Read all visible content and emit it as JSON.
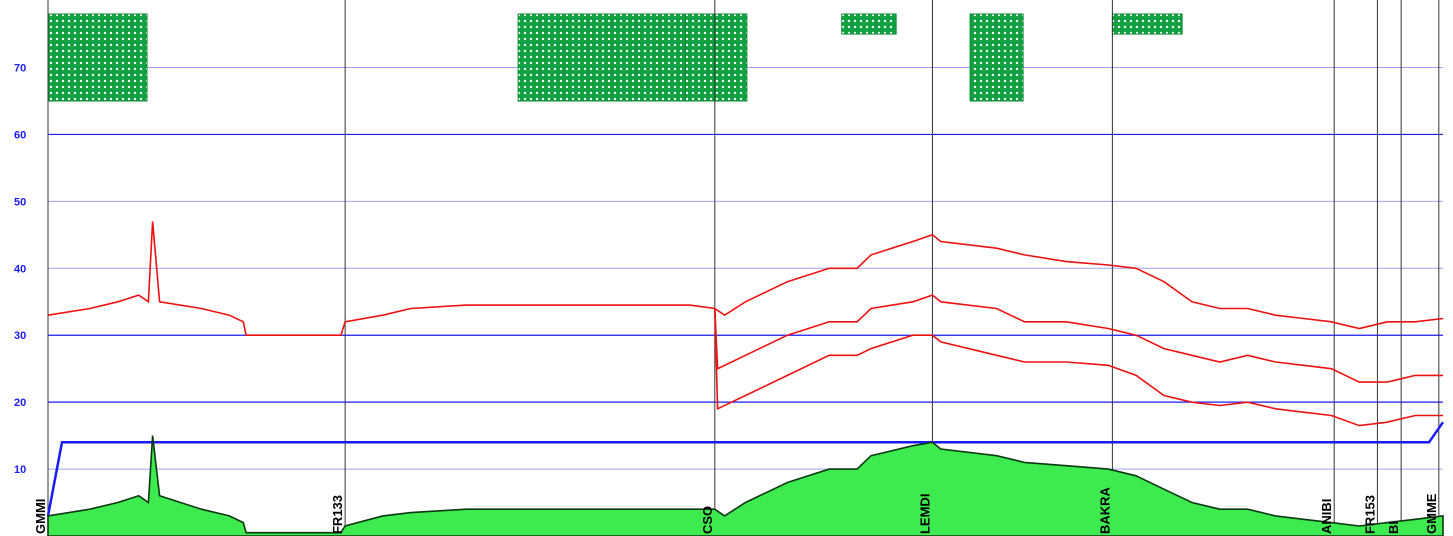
{
  "chart_data": {
    "type": "line",
    "ylim": [
      0,
      78
    ],
    "y_ticks": [
      "10",
      "20",
      "30",
      "40",
      "50",
      "60",
      "70"
    ],
    "major_gridlines": [
      20,
      30,
      60
    ],
    "minor_gridlines": [
      10,
      40,
      50,
      70
    ],
    "x_range": [
      0,
      100
    ],
    "waypoints": [
      {
        "label": "GMMI",
        "x": 0
      },
      {
        "label": "FR133",
        "x": 21.3
      },
      {
        "label": "CSO",
        "x": 47.8
      },
      {
        "label": "LEMDI",
        "x": 63.4
      },
      {
        "label": "BAKRA",
        "x": 76.3
      },
      {
        "label": "ANIBI",
        "x": 92.2
      },
      {
        "label": "FR153",
        "x": 95.3
      },
      {
        "label": "BI",
        "x": 97
      },
      {
        "label": "GMME",
        "x": 99.7
      }
    ],
    "blocks": [
      {
        "x": [
          0,
          7.1
        ],
        "y": [
          65,
          78
        ]
      },
      {
        "x": [
          33.7,
          45.7
        ],
        "y": [
          65,
          78
        ]
      },
      {
        "x": [
          45.7,
          50.1
        ],
        "y": [
          65,
          78
        ]
      },
      {
        "x": [
          56.9,
          60.8
        ],
        "y": [
          75,
          78
        ]
      },
      {
        "x": [
          66.1,
          69.9
        ],
        "y": [
          65,
          78
        ]
      },
      {
        "x": [
          76.3,
          81.3
        ],
        "y": [
          75,
          78
        ]
      }
    ],
    "series": [
      {
        "type": "line",
        "color": "#ee1111",
        "points": [
          [
            0,
            33
          ],
          [
            3,
            34
          ],
          [
            5,
            35
          ],
          [
            6.5,
            36
          ],
          [
            7.2,
            35
          ],
          [
            7.5,
            47
          ],
          [
            8,
            35
          ],
          [
            11,
            34
          ],
          [
            13,
            33
          ],
          [
            14,
            32
          ],
          [
            14.2,
            30
          ],
          [
            21,
            30
          ],
          [
            21.3,
            32
          ],
          [
            24,
            33
          ],
          [
            26,
            34
          ],
          [
            30,
            34.5
          ],
          [
            36,
            34.5
          ],
          [
            42,
            34.5
          ],
          [
            46,
            34.5
          ],
          [
            47.8,
            34
          ],
          [
            48.5,
            33
          ],
          [
            50,
            35
          ],
          [
            53,
            38
          ],
          [
            56,
            40
          ],
          [
            58,
            40
          ],
          [
            59,
            42
          ],
          [
            62,
            44
          ],
          [
            63.4,
            45
          ],
          [
            64,
            44
          ],
          [
            68,
            43
          ],
          [
            70,
            42
          ],
          [
            73,
            41
          ],
          [
            76,
            40.5
          ],
          [
            78,
            40
          ],
          [
            80,
            38
          ],
          [
            82,
            35
          ],
          [
            84,
            34
          ],
          [
            86,
            34
          ],
          [
            88,
            33
          ],
          [
            90,
            32.5
          ],
          [
            92,
            32
          ],
          [
            94,
            31
          ],
          [
            96,
            32
          ],
          [
            98,
            32
          ],
          [
            100,
            32.5
          ]
        ]
      },
      {
        "type": "line",
        "color": "#ee1111",
        "points": [
          [
            47.8,
            34
          ],
          [
            48,
            25
          ],
          [
            50,
            27
          ],
          [
            53,
            30
          ],
          [
            56,
            32
          ],
          [
            58,
            32
          ],
          [
            59,
            34
          ],
          [
            62,
            35
          ],
          [
            63.4,
            36
          ],
          [
            64,
            35
          ],
          [
            68,
            34
          ],
          [
            70,
            32
          ],
          [
            73,
            32
          ],
          [
            76,
            31
          ],
          [
            78,
            30
          ],
          [
            80,
            28
          ],
          [
            82,
            27
          ],
          [
            84,
            26
          ],
          [
            86,
            27
          ],
          [
            88,
            26
          ],
          [
            90,
            25.5
          ],
          [
            92,
            25
          ],
          [
            94,
            23
          ],
          [
            96,
            23
          ],
          [
            98,
            24
          ],
          [
            100,
            24
          ]
        ]
      },
      {
        "type": "line",
        "color": "#ee1111",
        "points": [
          [
            47.8,
            34
          ],
          [
            48,
            19
          ],
          [
            50,
            21
          ],
          [
            53,
            24
          ],
          [
            56,
            27
          ],
          [
            58,
            27
          ],
          [
            59,
            28
          ],
          [
            62,
            30
          ],
          [
            63.4,
            30
          ],
          [
            64,
            29
          ],
          [
            68,
            27
          ],
          [
            70,
            26
          ],
          [
            73,
            26
          ],
          [
            76,
            25.5
          ],
          [
            78,
            24
          ],
          [
            80,
            21
          ],
          [
            82,
            20
          ],
          [
            84,
            19.5
          ],
          [
            86,
            20
          ],
          [
            88,
            19
          ],
          [
            90,
            18.5
          ],
          [
            92,
            18
          ],
          [
            94,
            16.5
          ],
          [
            96,
            17
          ],
          [
            98,
            18
          ],
          [
            100,
            18
          ]
        ]
      },
      {
        "type": "line",
        "color": "#1a1aff",
        "points": [
          [
            0,
            3
          ],
          [
            1,
            14
          ],
          [
            99,
            14
          ],
          [
            100,
            17
          ]
        ]
      },
      {
        "type": "area",
        "color": "#3dea4f",
        "points": [
          [
            0,
            3
          ],
          [
            3,
            4
          ],
          [
            5,
            5
          ],
          [
            6.5,
            6
          ],
          [
            7.2,
            5
          ],
          [
            7.5,
            15
          ],
          [
            8,
            6
          ],
          [
            11,
            4
          ],
          [
            13,
            3
          ],
          [
            14,
            2
          ],
          [
            14.2,
            0.5
          ],
          [
            21,
            0.5
          ],
          [
            21.3,
            1.5
          ],
          [
            24,
            3
          ],
          [
            26,
            3.5
          ],
          [
            30,
            4
          ],
          [
            36,
            4
          ],
          [
            42,
            4
          ],
          [
            46,
            4
          ],
          [
            47.8,
            4
          ],
          [
            48.5,
            3
          ],
          [
            50,
            5
          ],
          [
            53,
            8
          ],
          [
            56,
            10
          ],
          [
            58,
            10
          ],
          [
            59,
            12
          ],
          [
            62,
            13.5
          ],
          [
            63.4,
            14
          ],
          [
            64,
            13
          ],
          [
            68,
            12
          ],
          [
            70,
            11
          ],
          [
            73,
            10.5
          ],
          [
            76,
            10
          ],
          [
            78,
            9
          ],
          [
            80,
            7
          ],
          [
            82,
            5
          ],
          [
            84,
            4
          ],
          [
            86,
            4
          ],
          [
            88,
            3
          ],
          [
            90,
            2.5
          ],
          [
            92,
            2
          ],
          [
            94,
            1.5
          ],
          [
            96,
            2
          ],
          [
            98,
            2.5
          ],
          [
            100,
            3
          ]
        ]
      }
    ]
  }
}
